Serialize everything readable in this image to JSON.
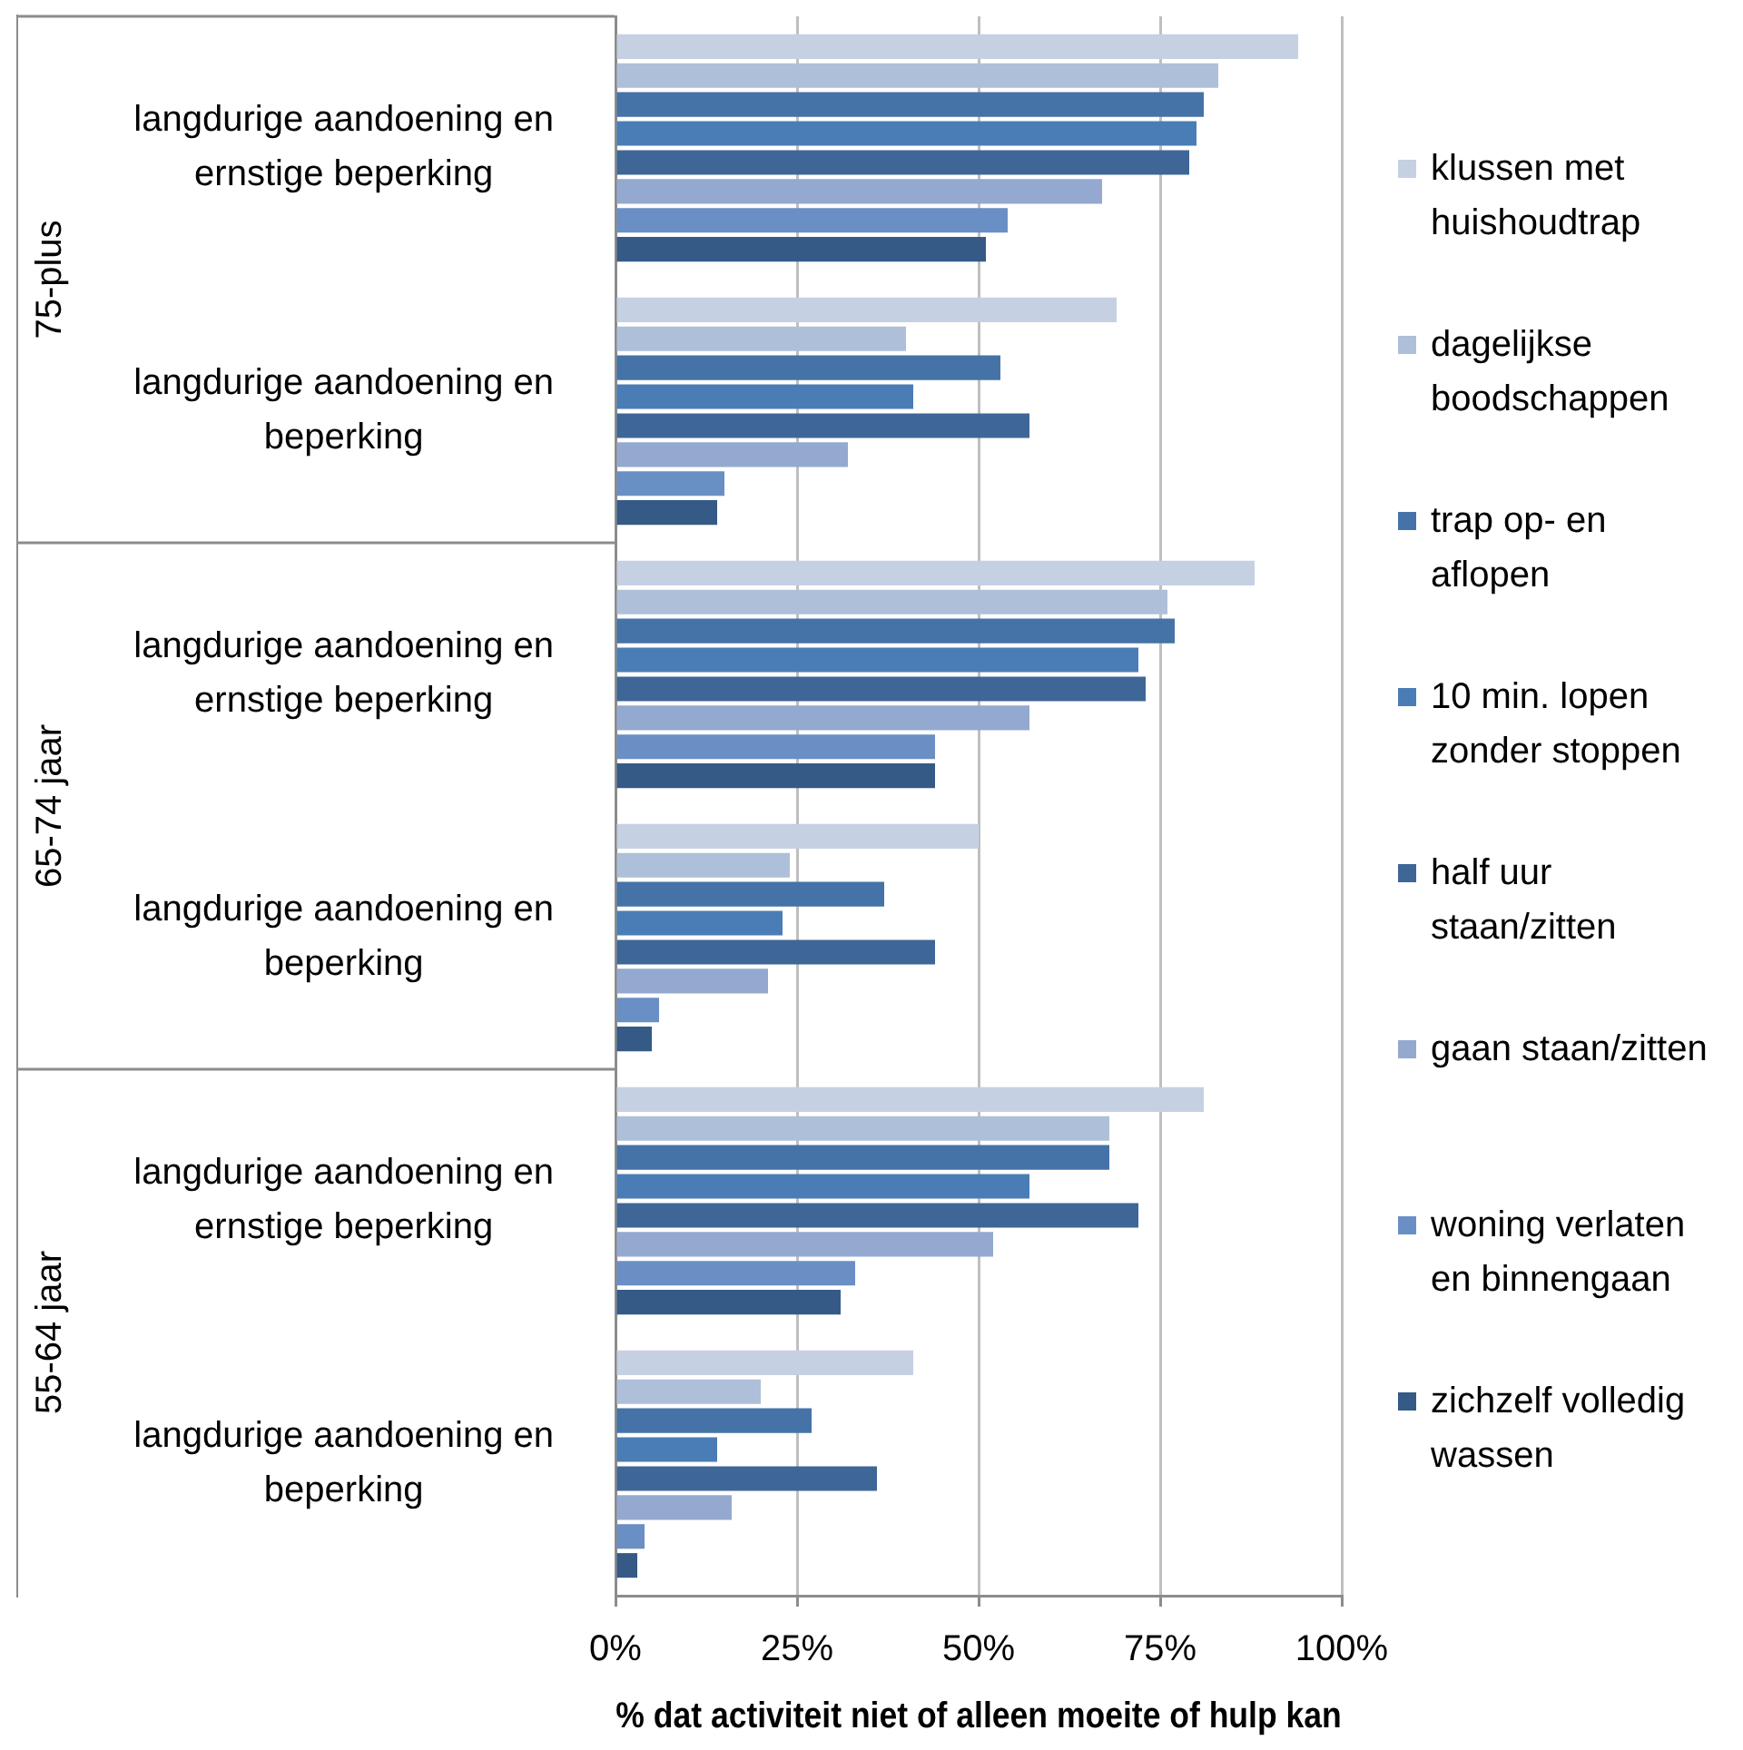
{
  "chart_data": {
    "type": "bar",
    "orientation": "horizontal",
    "xlabel": "% dat activiteit niet of alleen moeite of hulp kan",
    "categories": [
      "langdurige aandoening en ernstige beperking",
      "langdurige aandoening en beperking",
      "langdurige aandoening en ernstige beperking",
      "langdurige aandoening en beperking",
      "langdurige aandoening en ernstige beperking",
      "langdurige aandoening en beperking"
    ],
    "annotations": [
      "75-plus",
      "65-74 jaar",
      "55-64 jaar"
    ],
    "series": [
      {
        "name": "klussen met huishoudtrap",
        "color": "#c6d0e3",
        "values": [
          94,
          69,
          88,
          50,
          81,
          41
        ]
      },
      {
        "name": "dagelijkse boodschappen",
        "color": "#aebfd9",
        "values": [
          83,
          40,
          76,
          24,
          68,
          20
        ]
      },
      {
        "name": "trap op- en aflopen",
        "color": "#4573a7",
        "values": [
          81,
          53,
          77,
          37,
          68,
          27
        ]
      },
      {
        "name": "10 min. lopen zonder stoppen",
        "color": "#4a7db5",
        "values": [
          80,
          41,
          72,
          23,
          57,
          14
        ]
      },
      {
        "name": "half uur staan/zitten",
        "color": "#3e6697",
        "values": [
          79,
          57,
          73,
          44,
          72,
          36
        ]
      },
      {
        "name": "gaan staan/zitten",
        "color": "#94a9cf",
        "values": [
          67,
          32,
          57,
          21,
          52,
          16
        ]
      },
      {
        "name": "woning verlaten en binnengaan",
        "color": "#6a8fc4",
        "values": [
          54,
          15,
          44,
          6,
          33,
          4
        ]
      },
      {
        "name": "zichzelf volledig wassen",
        "color": "#355a86",
        "values": [
          51,
          14,
          44,
          5,
          31,
          3
        ]
      }
    ],
    "xlim": [
      0,
      100
    ],
    "xticks": [
      {
        "value": 0,
        "label": "0%"
      },
      {
        "value": 25,
        "label": "25%"
      },
      {
        "value": 50,
        "label": "50%"
      },
      {
        "value": 75,
        "label": "75%"
      },
      {
        "value": 100,
        "label": "100%"
      }
    ],
    "grid": "x",
    "legend": "right"
  }
}
